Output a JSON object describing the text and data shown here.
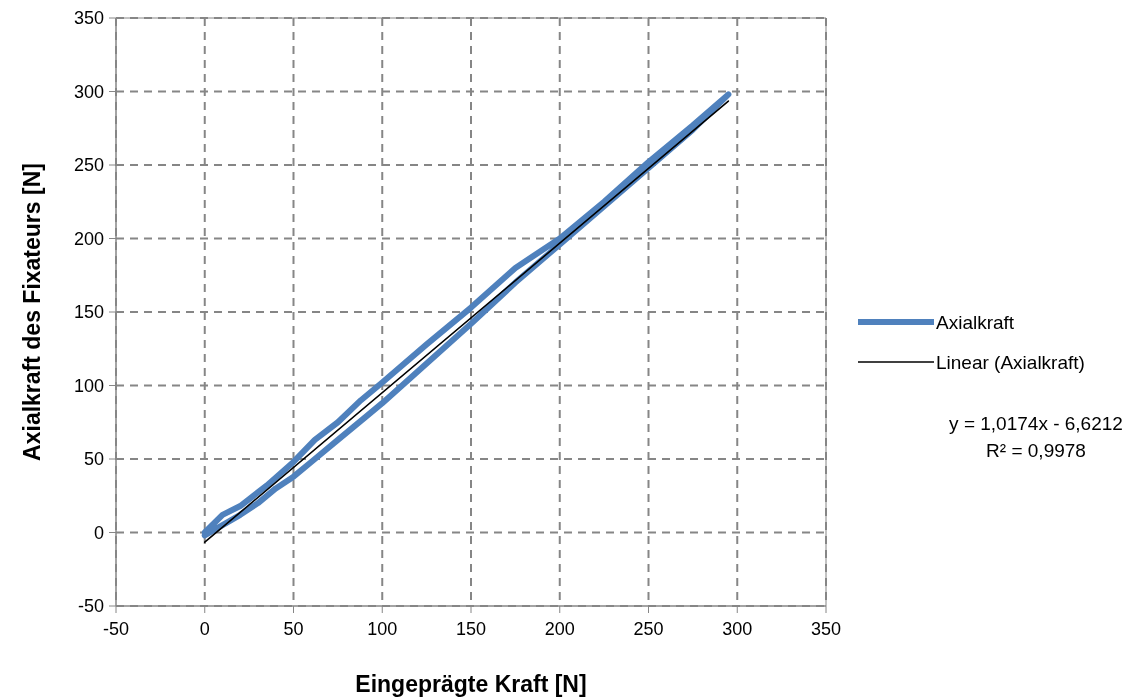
{
  "chart_data": {
    "type": "line",
    "xlabel": "Eingeprägte Kraft [N]",
    "ylabel": "Axialkraft des Fixateurs [N]",
    "xlim": [
      -50,
      350
    ],
    "xticks": [
      -50,
      0,
      50,
      100,
      150,
      200,
      250,
      300,
      350
    ],
    "ylim": [
      -50,
      350
    ],
    "yticks": [
      -50,
      0,
      50,
      100,
      150,
      200,
      250,
      300,
      350
    ],
    "grid": true,
    "legend": "right",
    "marker": "none",
    "series": [
      {
        "name": "Axialkraft",
        "color": "#4f81bd",
        "x": [
          0,
          10,
          20,
          30,
          40,
          50,
          60,
          75,
          90,
          100,
          125,
          150,
          175,
          200,
          225,
          250,
          275,
          295,
          275,
          250,
          225,
          200,
          175,
          150,
          125,
          100,
          88,
          75,
          62,
          50,
          35,
          20,
          10,
          0
        ],
        "values": [
          -2,
          5,
          12,
          20,
          30,
          38,
          48,
          63,
          78,
          88,
          115,
          142,
          170,
          196,
          222,
          248,
          274,
          298,
          277,
          252,
          225,
          200,
          180,
          153,
          128,
          102,
          90,
          75,
          63,
          48,
          32,
          18,
          12,
          0
        ]
      },
      {
        "name": "Linear (Axialkraft)",
        "color": "#000000",
        "x": [
          0,
          295
        ],
        "values": [
          -6.62,
          293.51
        ]
      }
    ],
    "annotations": [
      "y = 1,0174x - 6,6212",
      "R² = 0,9978"
    ]
  }
}
